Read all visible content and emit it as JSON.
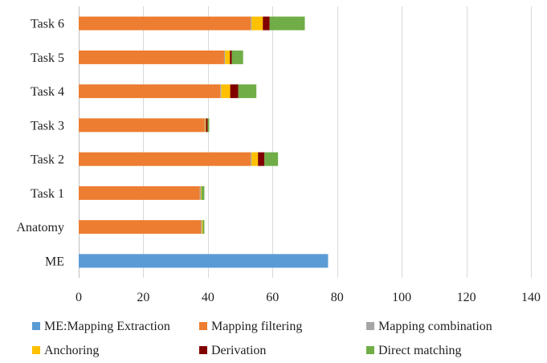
{
  "chart_data": {
    "type": "bar",
    "orientation": "horizontal",
    "stacked": true,
    "title": "",
    "xlabel": "",
    "ylabel": "",
    "xlim": [
      0,
      140
    ],
    "x_ticks": [
      0,
      20,
      40,
      60,
      80,
      100,
      120,
      140
    ],
    "grid": "vertical",
    "legend_position": "bottom",
    "categories": [
      "ME",
      "Anatomy",
      "Task 1",
      "Task 2",
      "Task 3",
      "Task 4",
      "Task 5",
      "Task 6"
    ],
    "series": [
      {
        "name": "ME:Mapping Extraction",
        "color": "#5b9bd5",
        "values": [
          77.2,
          0,
          0,
          0,
          0,
          0,
          0,
          0
        ]
      },
      {
        "name": "Mapping filtering",
        "color": "#ed7d31",
        "values": [
          0,
          37.8,
          37.5,
          53.2,
          39.0,
          43.8,
          45.0,
          53.2
        ]
      },
      {
        "name": "Mapping combination",
        "color": "#a5a5a5",
        "values": [
          0,
          0.3,
          0.3,
          0.3,
          0.2,
          0.3,
          0.3,
          0.3
        ]
      },
      {
        "name": "Anchoring",
        "color": "#ffc000",
        "values": [
          0,
          0.3,
          0.2,
          2.0,
          0.2,
          2.8,
          1.5,
          3.5
        ]
      },
      {
        "name": "Derivation",
        "color": "#800000",
        "values": [
          0,
          0,
          0,
          2.0,
          0.5,
          2.5,
          0.6,
          2.1
        ]
      },
      {
        "name": "Direct matching",
        "color": "#70ad47",
        "values": [
          0,
          0.5,
          0.9,
          4.2,
          0.5,
          5.6,
          3.5,
          10.9
        ]
      }
    ]
  }
}
